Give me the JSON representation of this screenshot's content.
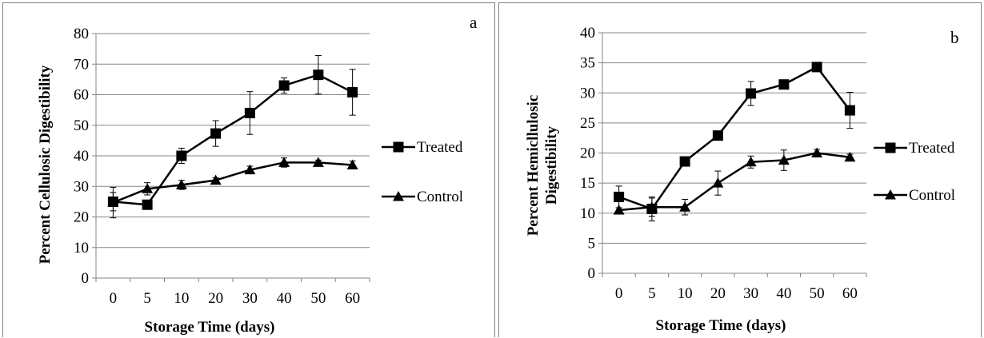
{
  "chart_data": [
    {
      "id": "a",
      "type": "line",
      "panel_label": "a",
      "xlabel": "Storage Time (days)",
      "ylabel": "Percent Cellulosic Digestibility",
      "categories": [
        "0",
        "5",
        "10",
        "20",
        "30",
        "40",
        "50",
        "60"
      ],
      "ylim": [
        0,
        80
      ],
      "yticks": [
        0,
        10,
        20,
        30,
        40,
        50,
        60,
        70,
        80
      ],
      "grid": true,
      "legend_position": "right",
      "series": [
        {
          "name": "Treated",
          "marker": "square",
          "values": [
            25,
            24,
            40,
            47.3,
            54,
            63,
            66.5,
            60.8
          ],
          "errors": [
            3,
            1,
            2.5,
            4.2,
            7,
            2.5,
            6.3,
            7.5
          ]
        },
        {
          "name": "Control",
          "marker": "triangle",
          "values": [
            24.7,
            29.2,
            30.5,
            32,
            35.4,
            37.8,
            37.8,
            37
          ],
          "errors": [
            5,
            2,
            1.5,
            0.8,
            1.2,
            1.5,
            0.8,
            1.3
          ]
        }
      ]
    },
    {
      "id": "b",
      "type": "line",
      "panel_label": "b",
      "xlabel": "Storage Time (days)",
      "ylabel": "Percent Hemicllulosic Digestibility",
      "categories": [
        "0",
        "5",
        "10",
        "20",
        "30",
        "40",
        "50",
        "60"
      ],
      "ylim": [
        0,
        40
      ],
      "yticks": [
        0,
        5,
        10,
        15,
        20,
        25,
        30,
        35,
        40
      ],
      "grid": true,
      "legend_position": "right",
      "series": [
        {
          "name": "Treated",
          "marker": "square",
          "values": [
            12.7,
            10.7,
            18.6,
            22.9,
            29.9,
            31.4,
            34.3,
            27.1
          ],
          "errors": [
            1.8,
            2,
            0.4,
            0.6,
            2,
            0.4,
            0.4,
            3
          ]
        },
        {
          "name": "Control",
          "marker": "triangle",
          "values": [
            10.5,
            11,
            11,
            15,
            18.5,
            18.8,
            20,
            19.3
          ],
          "errors": [
            0.4,
            1.5,
            1.3,
            2,
            1,
            1.7,
            0.6,
            0.5
          ]
        }
      ]
    }
  ]
}
